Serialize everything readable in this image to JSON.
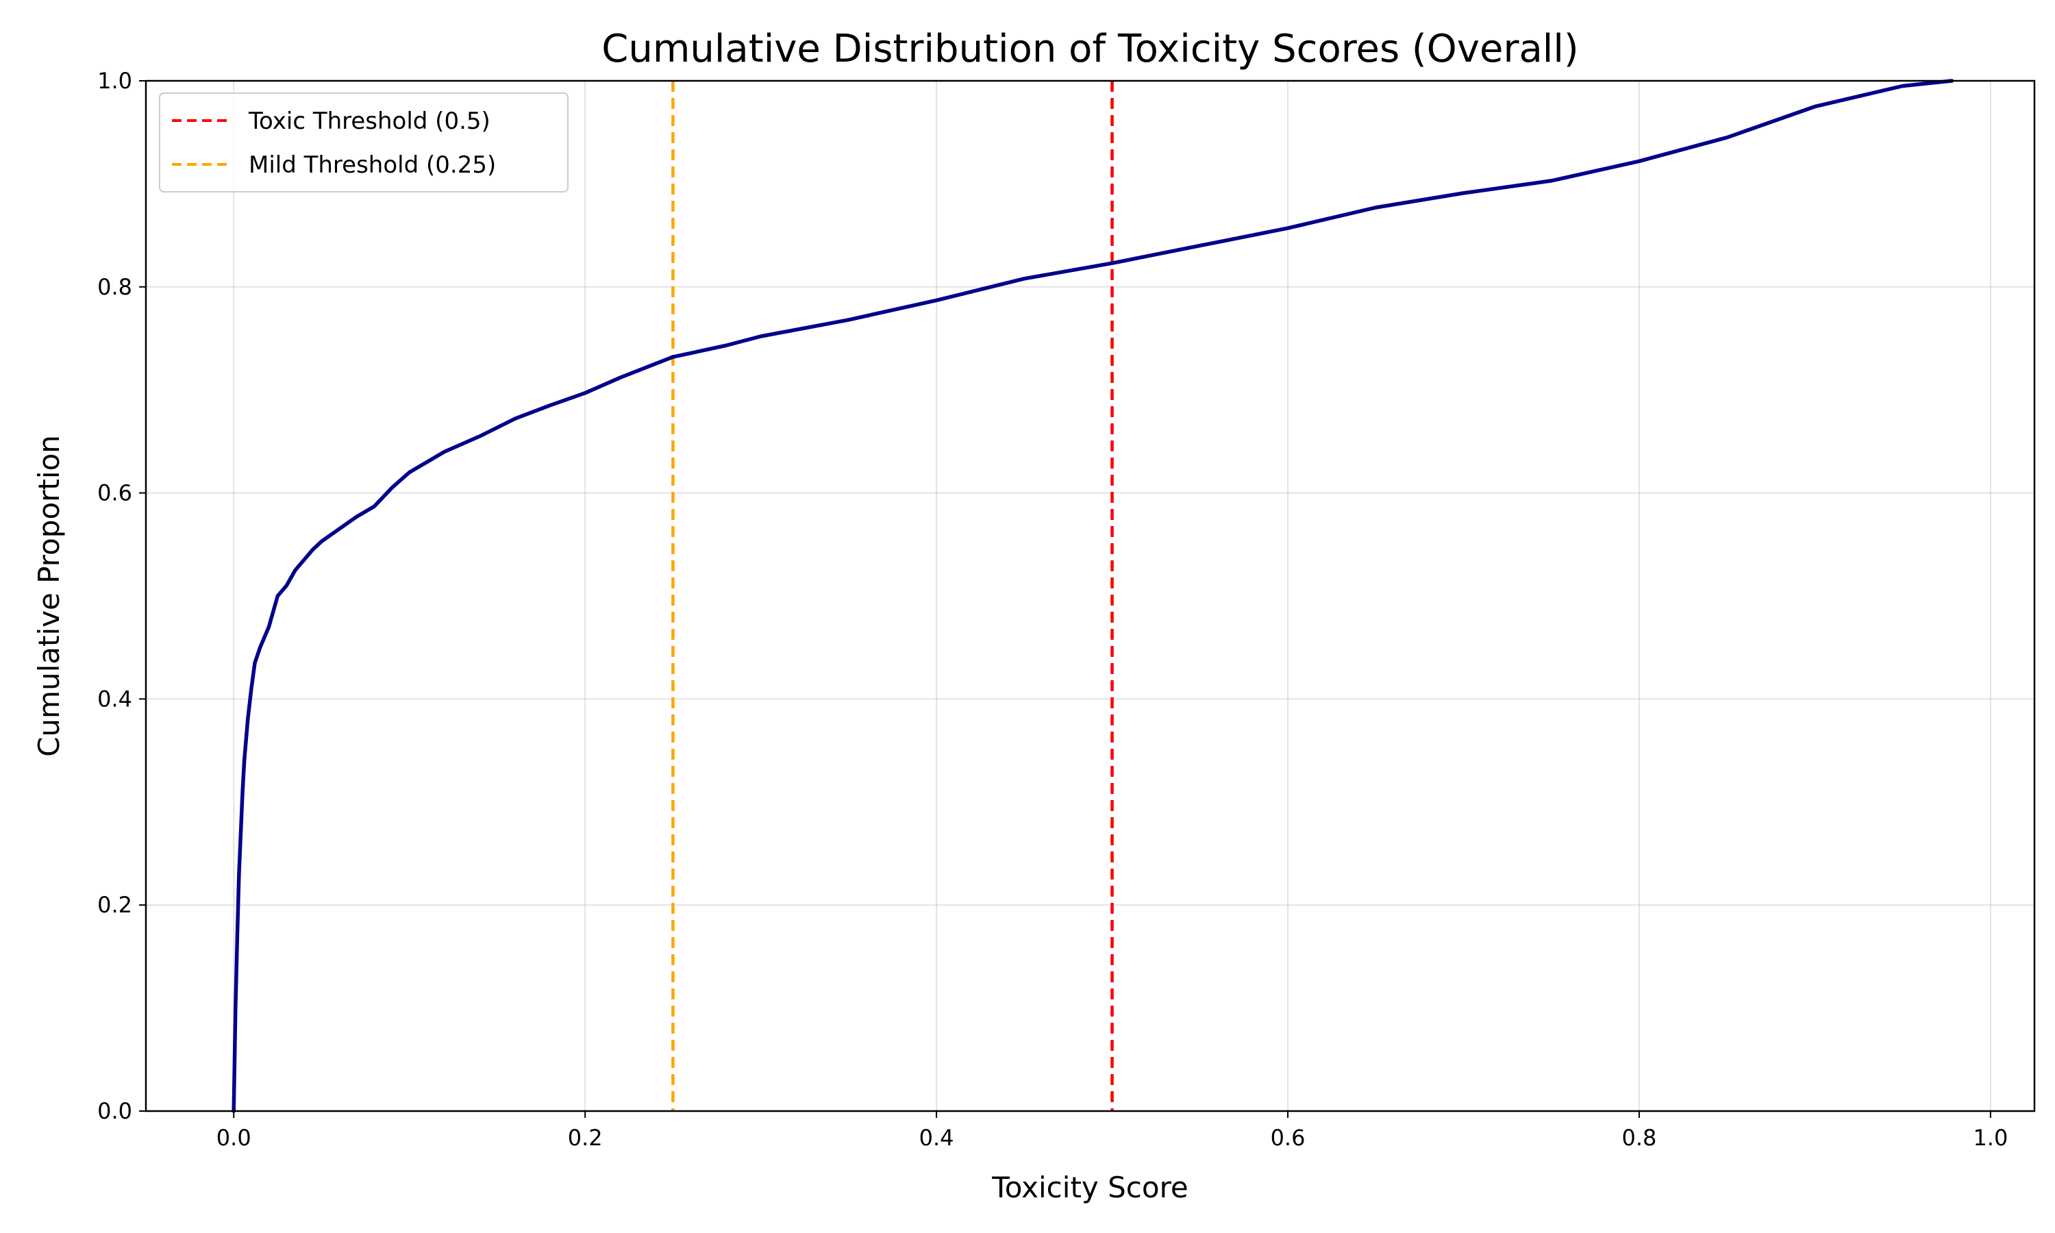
{
  "chart_data": {
    "type": "line",
    "title": "Cumulative Distribution of Toxicity Scores (Overall)",
    "xlabel": "Toxicity Score",
    "ylabel": "Cumulative Proportion",
    "xlim": [
      -0.05,
      1.025
    ],
    "ylim": [
      0,
      1
    ],
    "x_ticks": [
      "0.0",
      "0.2",
      "0.4",
      "0.6",
      "0.8",
      "1.0"
    ],
    "y_ticks": [
      "0.0",
      "0.2",
      "0.4",
      "0.6",
      "0.8",
      "1.0"
    ],
    "grid": true,
    "legend_position": "top-left",
    "series": [
      {
        "color": "#00008b",
        "x": [
          0.0,
          0.001,
          0.002,
          0.003,
          0.004,
          0.005,
          0.006,
          0.008,
          0.01,
          0.012,
          0.015,
          0.02,
          0.025,
          0.03,
          0.035,
          0.04,
          0.045,
          0.05,
          0.06,
          0.07,
          0.08,
          0.09,
          0.1,
          0.12,
          0.14,
          0.16,
          0.18,
          0.2,
          0.22,
          0.25,
          0.28,
          0.3,
          0.35,
          0.4,
          0.45,
          0.5,
          0.55,
          0.6,
          0.65,
          0.7,
          0.75,
          0.8,
          0.85,
          0.9,
          0.95,
          0.978
        ],
        "y": [
          0.0,
          0.1,
          0.17,
          0.23,
          0.27,
          0.31,
          0.34,
          0.38,
          0.41,
          0.435,
          0.45,
          0.47,
          0.5,
          0.51,
          0.525,
          0.535,
          0.545,
          0.553,
          0.565,
          0.577,
          0.587,
          0.605,
          0.62,
          0.64,
          0.655,
          0.672,
          0.685,
          0.697,
          0.712,
          0.732,
          0.743,
          0.752,
          0.768,
          0.787,
          0.808,
          0.823,
          0.84,
          0.857,
          0.877,
          0.891,
          0.903,
          0.922,
          0.945,
          0.975,
          0.995,
          1.0
        ]
      }
    ],
    "reference_lines": [
      {
        "label": "Toxic Threshold (0.5)",
        "x": 0.5,
        "color": "#ff0000",
        "style": "dashed"
      },
      {
        "label": "Mild Threshold (0.25)",
        "x": 0.25,
        "color": "#ffa500",
        "style": "dashed"
      }
    ]
  }
}
